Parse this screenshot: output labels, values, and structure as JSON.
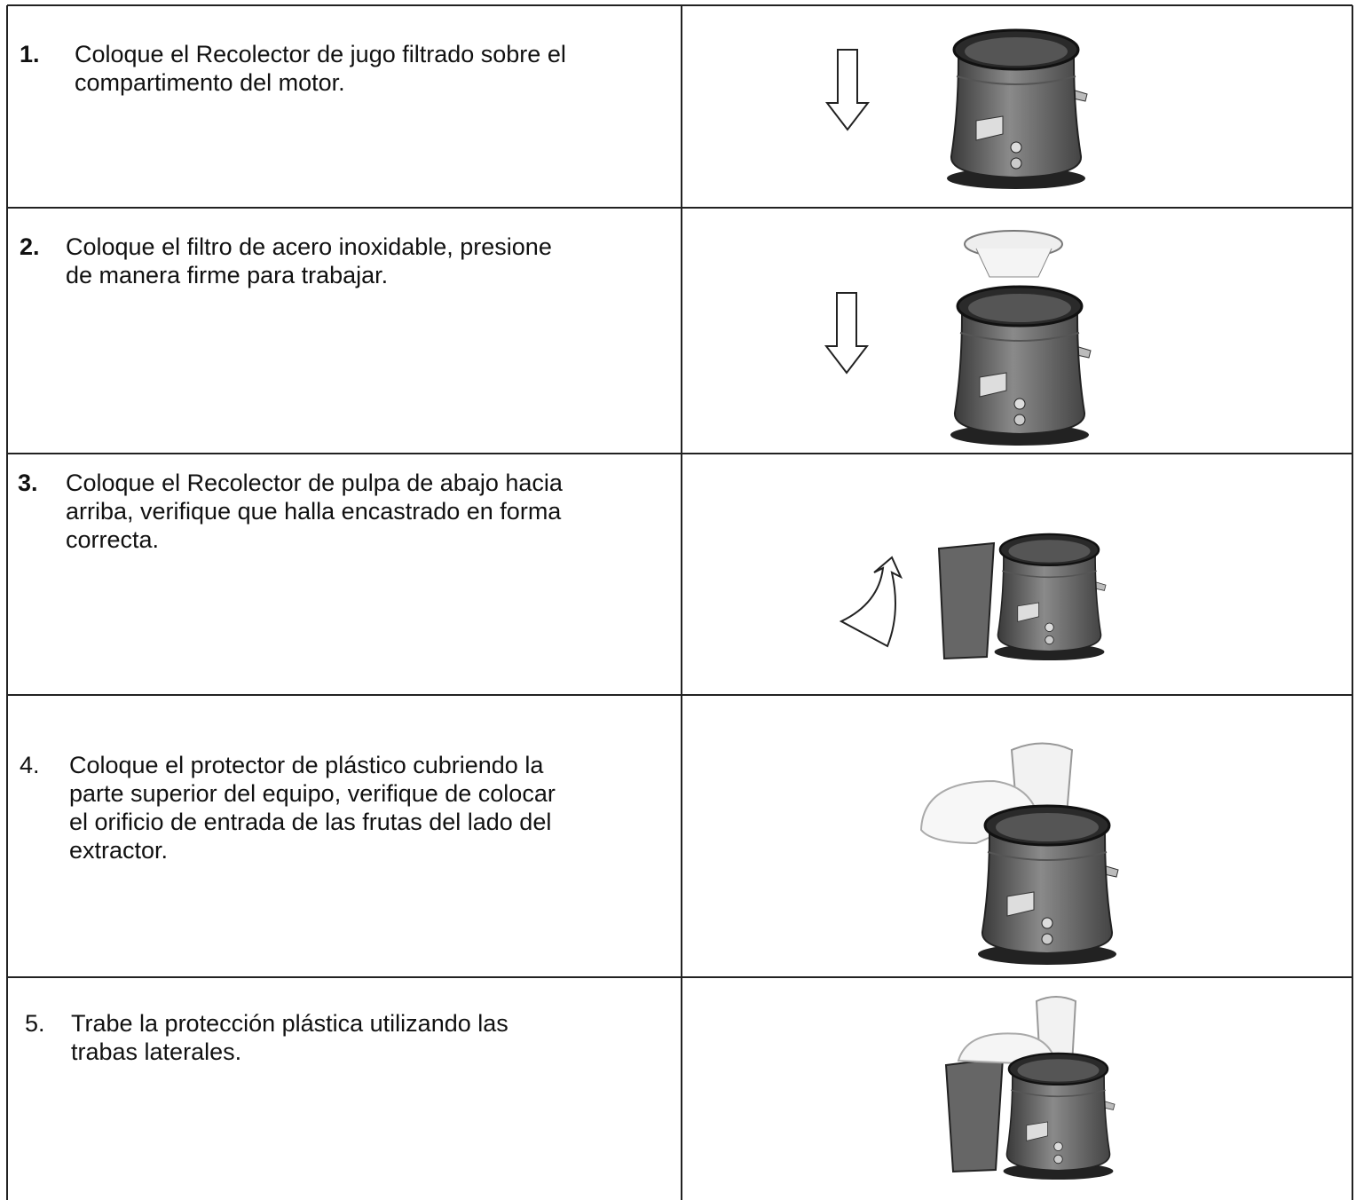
{
  "steps": [
    {
      "number": "1.",
      "lines": [
        "Coloque el Recolector de jugo filtrado sobre el",
        "compartimento del motor."
      ]
    },
    {
      "number": "2.",
      "lines": [
        "Coloque el filtro de acero inoxidable, presione",
        "de manera firme para trabajar."
      ]
    },
    {
      "number": "3.",
      "lines": [
        "Coloque el Recolector de pulpa de abajo hacia",
        "arriba, verifique que halla encastrado en forma",
        "correcta."
      ]
    },
    {
      "number": "4.",
      "lines": [
        "Coloque el protector de plástico cubriendo la",
        "parte superior del equipo, verifique de colocar",
        "el orificio de entrada de las frutas del lado del",
        "extractor."
      ]
    },
    {
      "number": "5.",
      "lines": [
        "Trabe la protección plástica utilizando las",
        "trabas laterales."
      ]
    }
  ]
}
